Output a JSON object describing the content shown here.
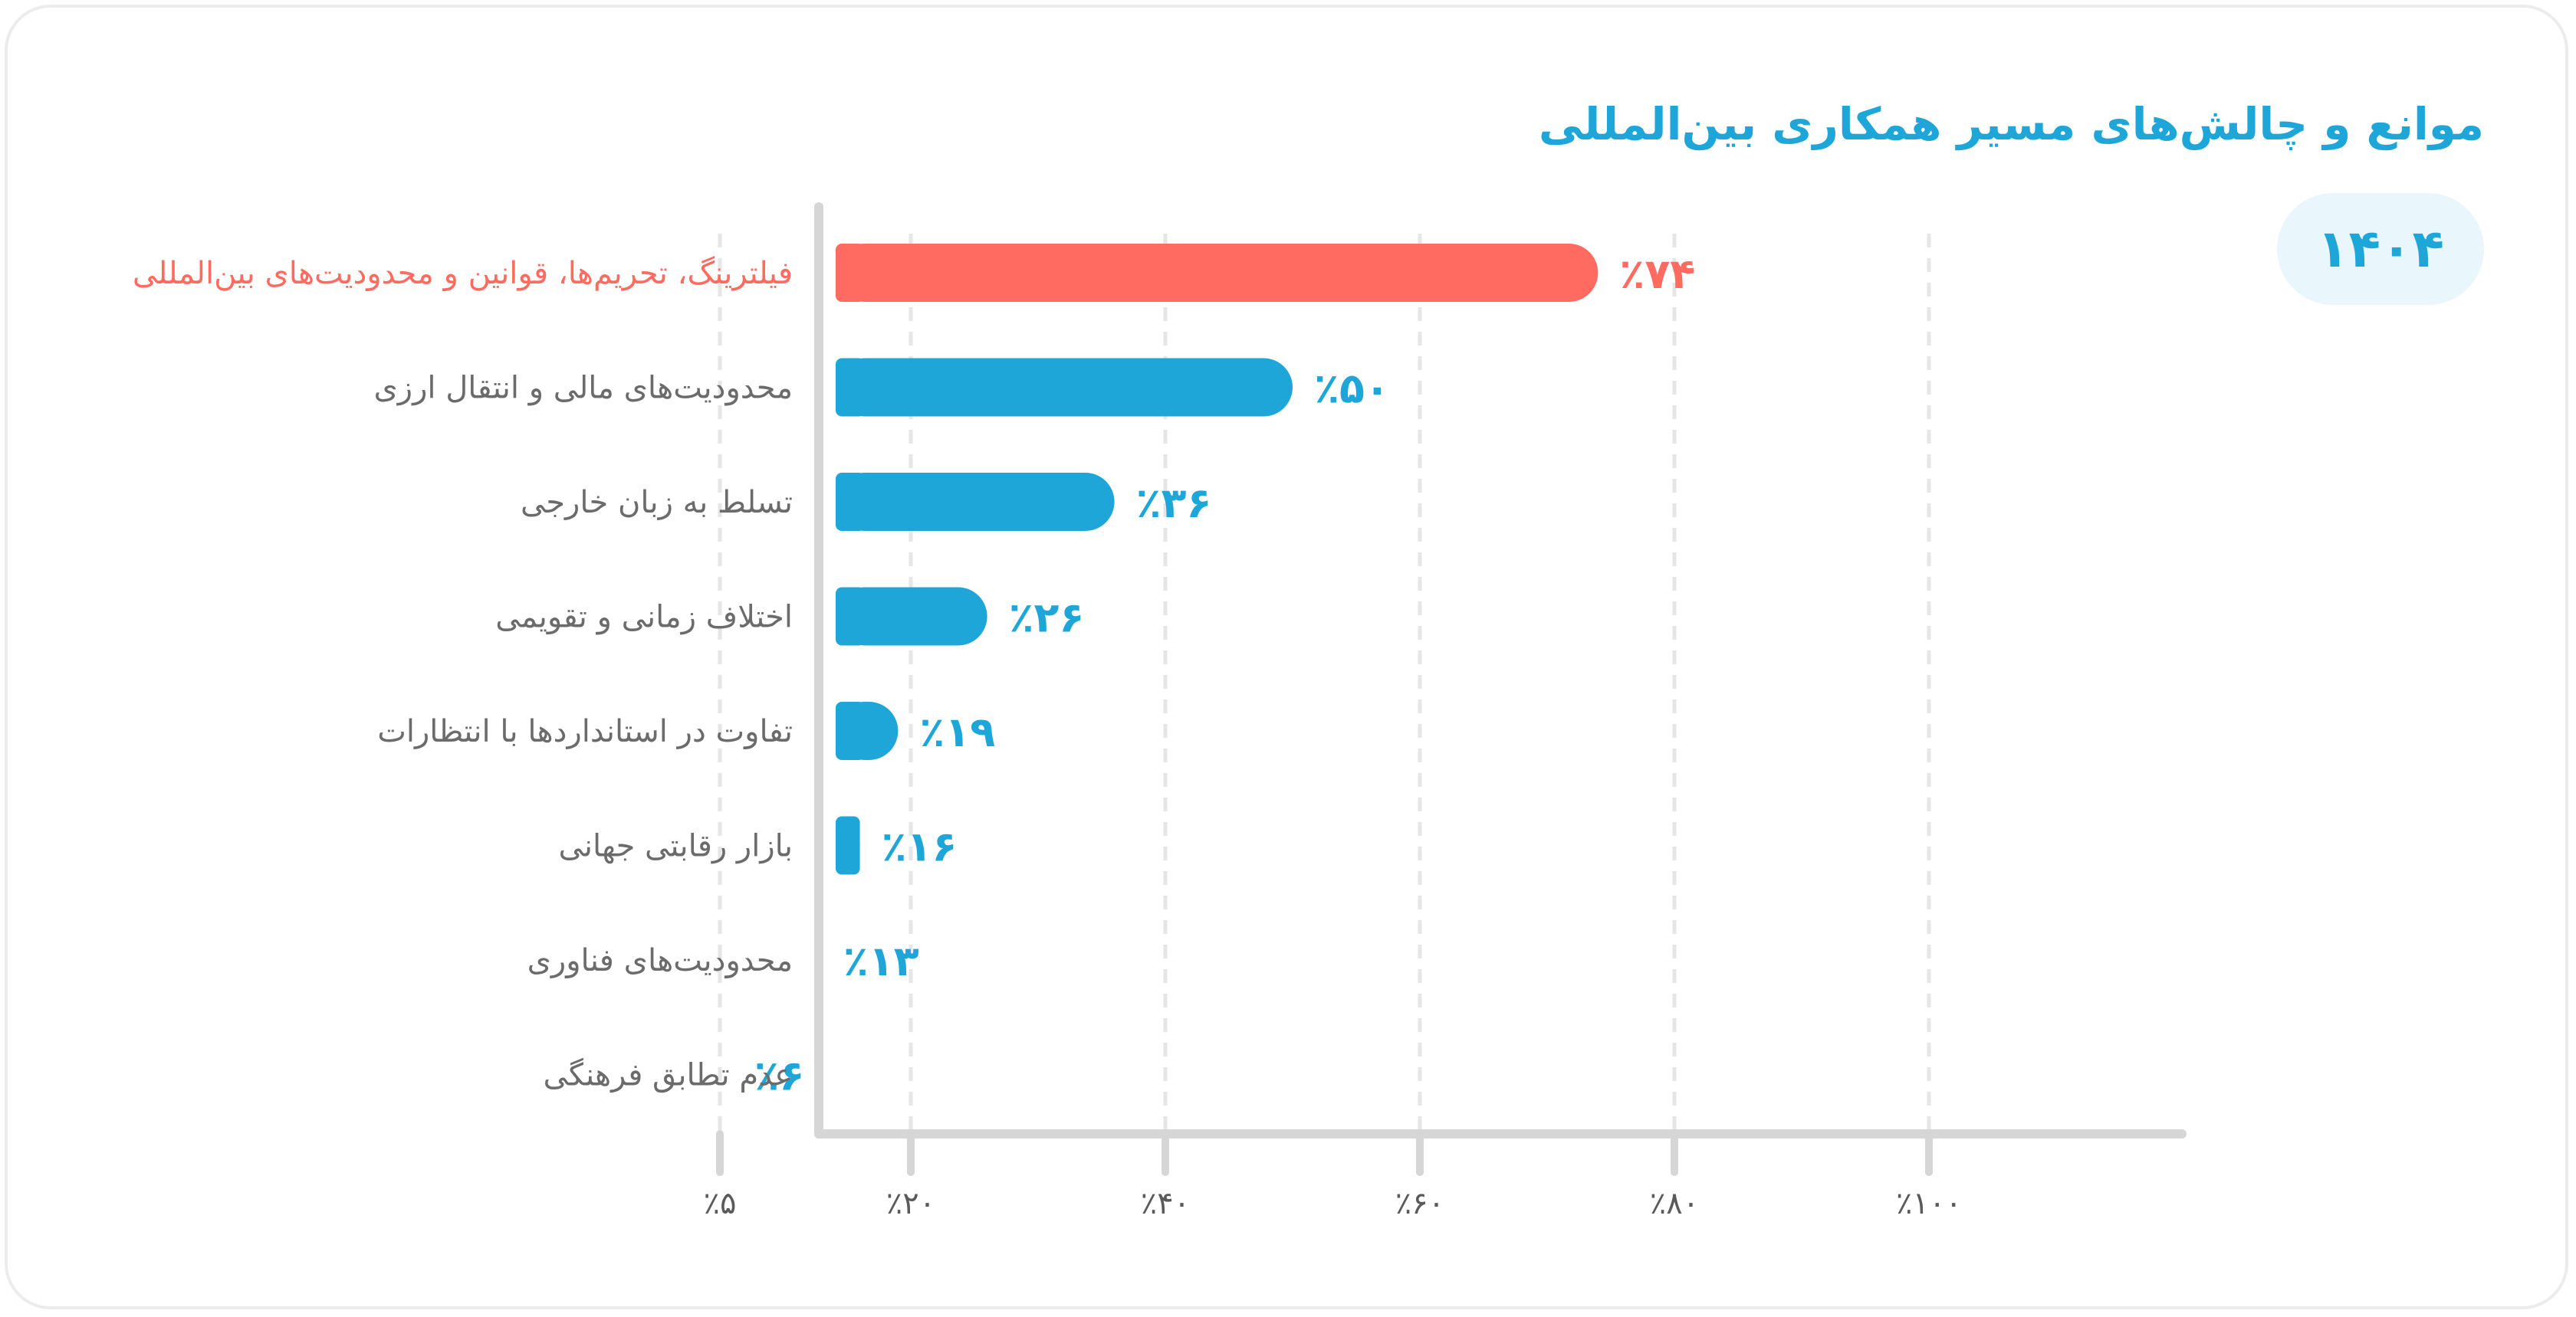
{
  "title": "موانع و چالش‌های مسیر همکاری بین‌المللی",
  "year": "۱۴۰۴",
  "colors": {
    "highlight": "#ff6b60",
    "bar": "#1ea6d9",
    "label": "#6b6b6b",
    "axis": "#d6d6d6",
    "grid": "#e6e6e6",
    "tick": "#5a5a5a"
  },
  "chart_data": {
    "type": "bar",
    "orientation": "horizontal",
    "categories": [
      "فیلترینگ، تحریم‌ها، قوانین و محدودیت‌های بین‌المللی",
      "محدودیت‌های مالی و انتقال ارزی",
      "تسلط به زبان خارجی",
      "اختلاف زمانی و تقویمی",
      "تفاوت در استانداردها با انتظارات",
      "بازار رقابتی جهانی",
      "محدودیت‌های فناوری",
      "عدم تطابق فرهنگی"
    ],
    "values": [
      74,
      50,
      36,
      26,
      19,
      16,
      13,
      6
    ],
    "value_labels": [
      "٪۷۴",
      "٪۵۰",
      "٪۳۶",
      "٪۲۶",
      "٪۱۹",
      "٪۱۶",
      "٪۱۳",
      "٪۶"
    ],
    "highlight_index": 0,
    "xticks": [
      5,
      20,
      40,
      60,
      80,
      100
    ],
    "xtick_labels": [
      "٪۵",
      "٪۲۰",
      "٪۴۰",
      "٪۶۰",
      "٪۸۰",
      "٪۱۰۰"
    ],
    "xlim": [
      0,
      100
    ],
    "grid": "vertical-dashed"
  }
}
